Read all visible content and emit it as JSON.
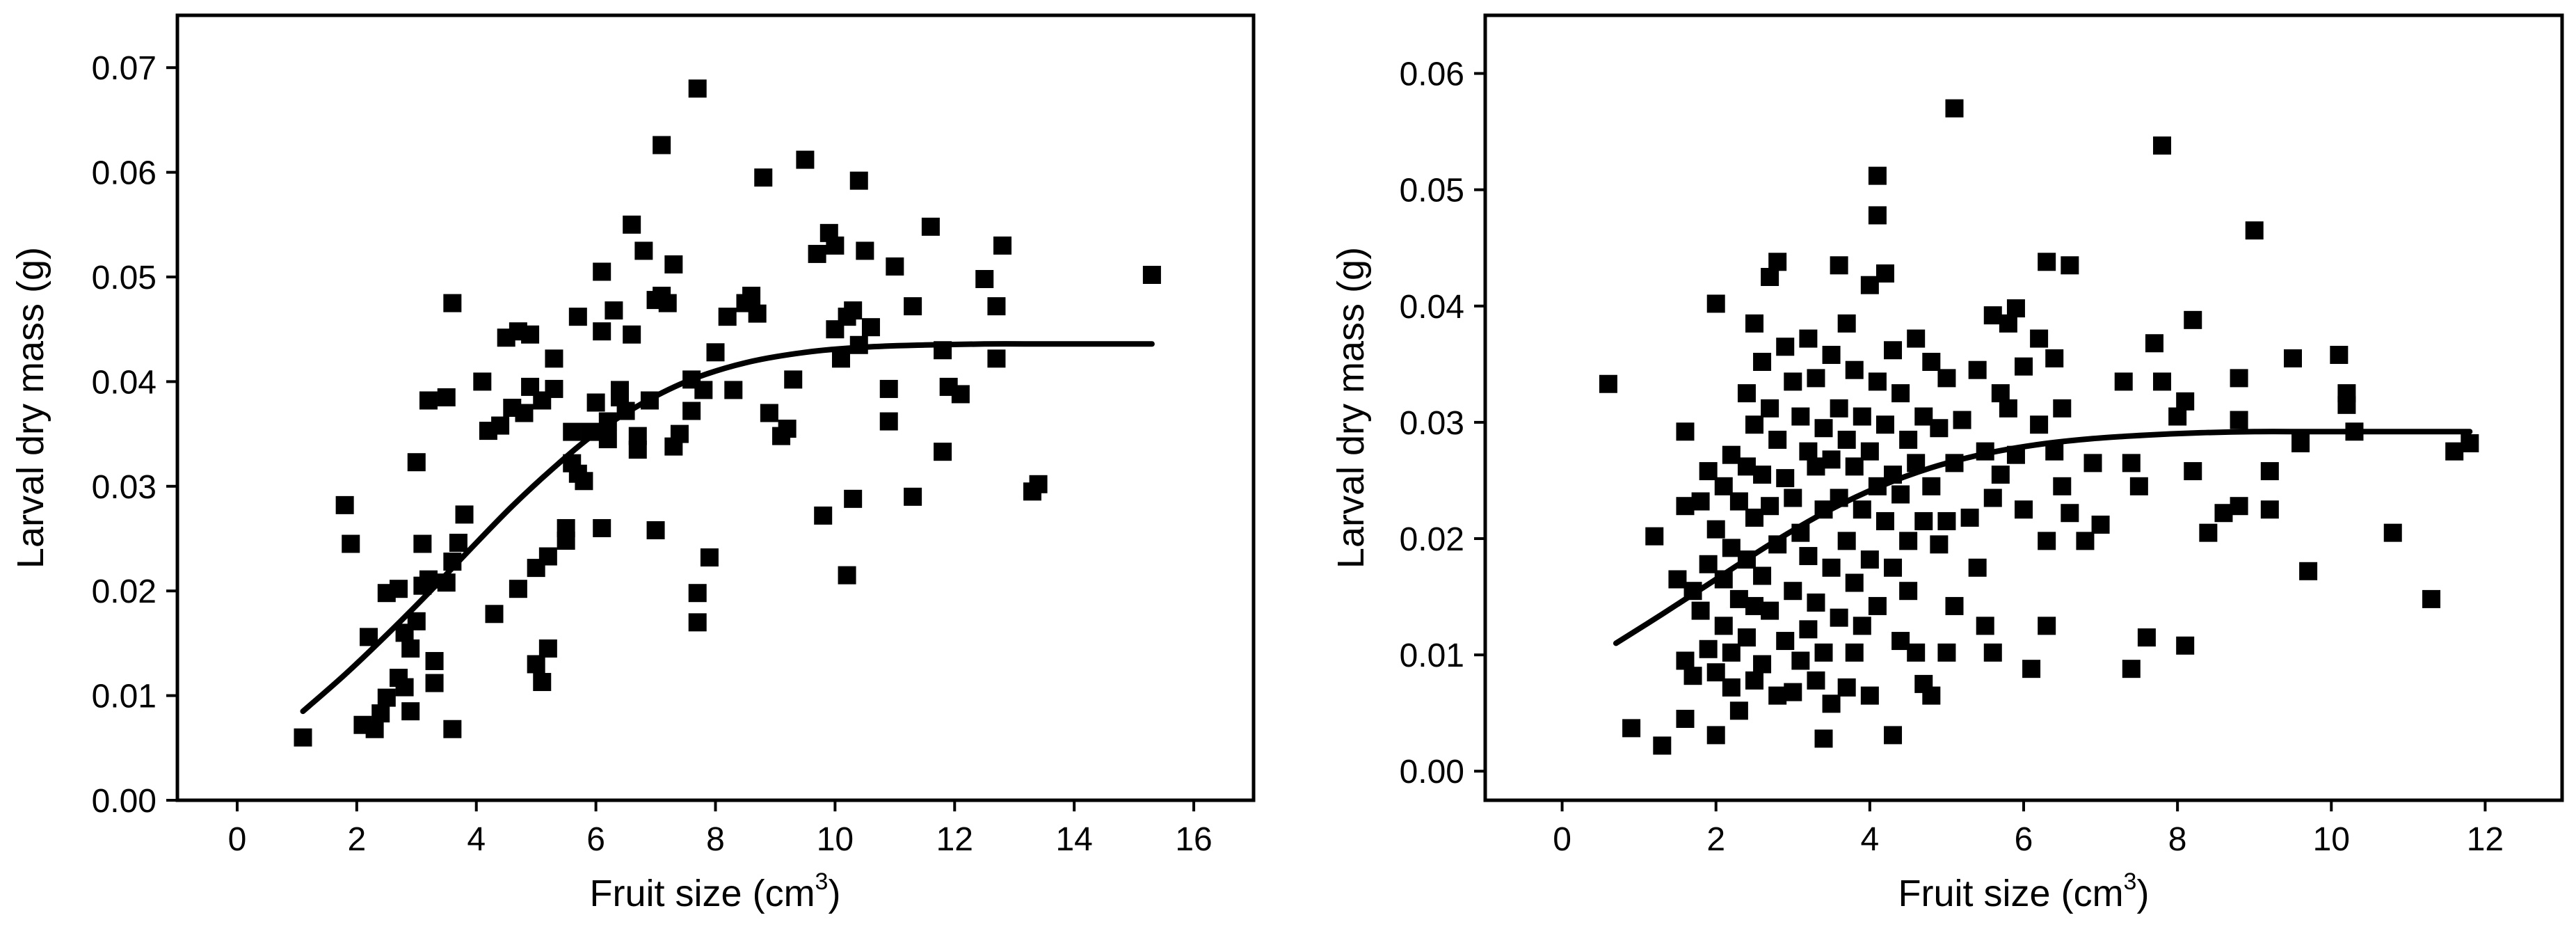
{
  "chart_data": [
    {
      "type": "scatter",
      "xlabel": "Fruit size (cm",
      "xlabel_sup": "3",
      "xlabel_close": ")",
      "ylabel": "Larval dry mass (g)",
      "xlim": [
        -1,
        17
      ],
      "ylim": [
        0,
        0.075
      ],
      "xticks": [
        "0",
        "2",
        "4",
        "6",
        "8",
        "10",
        "12",
        "14",
        "16"
      ],
      "yticks": [
        "0.00",
        "0.01",
        "0.02",
        "0.03",
        "0.04",
        "0.05",
        "0.06",
        "0.07"
      ],
      "fit_curve": {
        "x": [
          1.1,
          1.8,
          2.5,
          3.2,
          3.9,
          4.6,
          5.3,
          6.0,
          6.8,
          7.6,
          8.5,
          9.5,
          10.5,
          11.5,
          12.5,
          13.5,
          14.5,
          15.3
        ],
        "y": [
          0.0085,
          0.012,
          0.0158,
          0.0198,
          0.024,
          0.0281,
          0.0318,
          0.0351,
          0.038,
          0.0402,
          0.0418,
          0.0428,
          0.0433,
          0.0435,
          0.0436,
          0.0436,
          0.0436,
          0.0436
        ]
      },
      "points": [
        [
          1.1,
          0.006
        ],
        [
          1.8,
          0.0282
        ],
        [
          1.9,
          0.0245
        ],
        [
          2.1,
          0.0072
        ],
        [
          2.2,
          0.0156
        ],
        [
          2.3,
          0.0068
        ],
        [
          2.4,
          0.0083
        ],
        [
          2.5,
          0.0098
        ],
        [
          2.5,
          0.0198
        ],
        [
          2.7,
          0.0202
        ],
        [
          2.7,
          0.0117
        ],
        [
          2.8,
          0.0108
        ],
        [
          2.8,
          0.016
        ],
        [
          2.9,
          0.0145
        ],
        [
          2.9,
          0.0085
        ],
        [
          3.0,
          0.0323
        ],
        [
          3.0,
          0.0171
        ],
        [
          3.1,
          0.0245
        ],
        [
          3.1,
          0.0205
        ],
        [
          3.2,
          0.0382
        ],
        [
          3.2,
          0.0211
        ],
        [
          3.3,
          0.0133
        ],
        [
          3.3,
          0.0112
        ],
        [
          3.5,
          0.0385
        ],
        [
          3.5,
          0.0208
        ],
        [
          3.6,
          0.0475
        ],
        [
          3.6,
          0.0068
        ],
        [
          3.6,
          0.0228
        ],
        [
          3.7,
          0.0246
        ],
        [
          3.8,
          0.0273
        ],
        [
          4.1,
          0.04
        ],
        [
          4.2,
          0.0353
        ],
        [
          4.3,
          0.0178
        ],
        [
          4.4,
          0.0358
        ],
        [
          4.5,
          0.0442
        ],
        [
          4.6,
          0.0375
        ],
        [
          4.7,
          0.0448
        ],
        [
          4.7,
          0.0202
        ],
        [
          4.8,
          0.037
        ],
        [
          4.9,
          0.0445
        ],
        [
          4.9,
          0.0395
        ],
        [
          5.0,
          0.0222
        ],
        [
          5.0,
          0.013
        ],
        [
          5.1,
          0.0113
        ],
        [
          5.1,
          0.0382
        ],
        [
          5.2,
          0.0145
        ],
        [
          5.2,
          0.0233
        ],
        [
          5.3,
          0.0393
        ],
        [
          5.3,
          0.0422
        ],
        [
          5.5,
          0.0248
        ],
        [
          5.5,
          0.026
        ],
        [
          5.6,
          0.0352
        ],
        [
          5.6,
          0.0322
        ],
        [
          5.7,
          0.0462
        ],
        [
          5.7,
          0.0312
        ],
        [
          5.8,
          0.0305
        ],
        [
          5.9,
          0.0352
        ],
        [
          6.0,
          0.038
        ],
        [
          6.1,
          0.0505
        ],
        [
          6.1,
          0.0448
        ],
        [
          6.1,
          0.026
        ],
        [
          6.2,
          0.0362
        ],
        [
          6.2,
          0.0345
        ],
        [
          6.3,
          0.0468
        ],
        [
          6.4,
          0.0392
        ],
        [
          6.4,
          0.0385
        ],
        [
          6.5,
          0.0372
        ],
        [
          6.6,
          0.055
        ],
        [
          6.6,
          0.0445
        ],
        [
          6.7,
          0.0348
        ],
        [
          6.7,
          0.0335
        ],
        [
          6.8,
          0.0525
        ],
        [
          6.9,
          0.0382
        ],
        [
          7.0,
          0.0478
        ],
        [
          7.0,
          0.0258
        ],
        [
          7.1,
          0.0626
        ],
        [
          7.1,
          0.0482
        ],
        [
          7.2,
          0.0475
        ],
        [
          7.3,
          0.0512
        ],
        [
          7.3,
          0.0338
        ],
        [
          7.4,
          0.035
        ],
        [
          7.6,
          0.0402
        ],
        [
          7.6,
          0.0372
        ],
        [
          7.7,
          0.068
        ],
        [
          7.7,
          0.0198
        ],
        [
          7.7,
          0.017
        ],
        [
          7.8,
          0.0392
        ],
        [
          7.9,
          0.0232
        ],
        [
          8.0,
          0.0428
        ],
        [
          8.2,
          0.0462
        ],
        [
          8.3,
          0.0392
        ],
        [
          8.5,
          0.0475
        ],
        [
          8.6,
          0.0482
        ],
        [
          8.7,
          0.0465
        ],
        [
          8.8,
          0.0595
        ],
        [
          8.9,
          0.037
        ],
        [
          9.1,
          0.0348
        ],
        [
          9.2,
          0.0355
        ],
        [
          9.3,
          0.0402
        ],
        [
          9.5,
          0.0612
        ],
        [
          9.7,
          0.0522
        ],
        [
          9.8,
          0.0272
        ],
        [
          9.9,
          0.0542
        ],
        [
          10.0,
          0.053
        ],
        [
          10.0,
          0.045
        ],
        [
          10.1,
          0.0422
        ],
        [
          10.2,
          0.0462
        ],
        [
          10.2,
          0.0215
        ],
        [
          10.3,
          0.0468
        ],
        [
          10.3,
          0.0288
        ],
        [
          10.4,
          0.0592
        ],
        [
          10.4,
          0.0435
        ],
        [
          10.5,
          0.0525
        ],
        [
          10.6,
          0.0452
        ],
        [
          10.9,
          0.0393
        ],
        [
          10.9,
          0.0362
        ],
        [
          11.0,
          0.051
        ],
        [
          11.3,
          0.0472
        ],
        [
          11.3,
          0.029
        ],
        [
          11.6,
          0.0548
        ],
        [
          11.8,
          0.043
        ],
        [
          11.8,
          0.0333
        ],
        [
          11.9,
          0.0395
        ],
        [
          12.1,
          0.0388
        ],
        [
          12.5,
          0.0498
        ],
        [
          12.7,
          0.0422
        ],
        [
          12.7,
          0.0472
        ],
        [
          12.8,
          0.053
        ],
        [
          13.3,
          0.0295
        ],
        [
          13.4,
          0.0302
        ],
        [
          15.3,
          0.0502
        ]
      ]
    },
    {
      "type": "scatter",
      "xlabel": "Fruit size (cm",
      "xlabel_sup": "3",
      "xlabel_close": ")",
      "ylabel": "Larval dry mass (g)",
      "xlim": [
        -1,
        13
      ],
      "ylim": [
        -0.0025,
        0.065
      ],
      "xticks": [
        "0",
        "2",
        "4",
        "6",
        "8",
        "10",
        "12"
      ],
      "yticks": [
        "0.00",
        "0.01",
        "0.02",
        "0.03",
        "0.04",
        "0.05",
        "0.06"
      ],
      "fit_curve": {
        "x": [
          0.7,
          1.3,
          2.0,
          2.7,
          3.4,
          4.1,
          4.8,
          5.5,
          6.2,
          6.9,
          7.6,
          8.3,
          9.0,
          9.7,
          10.4,
          11.1,
          11.8
        ],
        "y": [
          0.011,
          0.0135,
          0.0165,
          0.0195,
          0.0222,
          0.0244,
          0.0261,
          0.0273,
          0.0281,
          0.0286,
          0.0289,
          0.0291,
          0.0292,
          0.0292,
          0.0292,
          0.0292,
          0.0292
        ]
      },
      "points": [
        [
          0.6,
          0.0333
        ],
        [
          0.9,
          0.0037
        ],
        [
          1.2,
          0.0202
        ],
        [
          1.3,
          0.0022
        ],
        [
          1.5,
          0.0165
        ],
        [
          1.6,
          0.0292
        ],
        [
          1.6,
          0.0045
        ],
        [
          1.6,
          0.0095
        ],
        [
          1.6,
          0.0228
        ],
        [
          1.7,
          0.0155
        ],
        [
          1.7,
          0.0082
        ],
        [
          1.8,
          0.0232
        ],
        [
          1.8,
          0.0138
        ],
        [
          1.9,
          0.0258
        ],
        [
          1.9,
          0.0178
        ],
        [
          1.9,
          0.0105
        ],
        [
          2.0,
          0.0402
        ],
        [
          2.0,
          0.0208
        ],
        [
          2.0,
          0.0085
        ],
        [
          2.0,
          0.0031
        ],
        [
          2.1,
          0.0245
        ],
        [
          2.1,
          0.0165
        ],
        [
          2.1,
          0.0125
        ],
        [
          2.2,
          0.0272
        ],
        [
          2.2,
          0.0192
        ],
        [
          2.2,
          0.0102
        ],
        [
          2.2,
          0.0072
        ],
        [
          2.3,
          0.0232
        ],
        [
          2.3,
          0.0148
        ],
        [
          2.3,
          0.0052
        ],
        [
          2.4,
          0.0325
        ],
        [
          2.4,
          0.0262
        ],
        [
          2.4,
          0.0182
        ],
        [
          2.4,
          0.0115
        ],
        [
          2.5,
          0.0385
        ],
        [
          2.5,
          0.0298
        ],
        [
          2.5,
          0.0218
        ],
        [
          2.5,
          0.0142
        ],
        [
          2.5,
          0.0078
        ],
        [
          2.6,
          0.0352
        ],
        [
          2.6,
          0.0255
        ],
        [
          2.6,
          0.0168
        ],
        [
          2.6,
          0.0092
        ],
        [
          2.7,
          0.0425
        ],
        [
          2.7,
          0.0312
        ],
        [
          2.7,
          0.0228
        ],
        [
          2.7,
          0.0138
        ],
        [
          2.8,
          0.0438
        ],
        [
          2.8,
          0.0285
        ],
        [
          2.8,
          0.0195
        ],
        [
          2.8,
          0.0065
        ],
        [
          2.9,
          0.0365
        ],
        [
          2.9,
          0.0252
        ],
        [
          2.9,
          0.0112
        ],
        [
          3.0,
          0.0335
        ],
        [
          3.0,
          0.0235
        ],
        [
          3.0,
          0.0155
        ],
        [
          3.0,
          0.0068
        ],
        [
          3.1,
          0.0305
        ],
        [
          3.1,
          0.0205
        ],
        [
          3.1,
          0.0095
        ],
        [
          3.2,
          0.0372
        ],
        [
          3.2,
          0.0275
        ],
        [
          3.2,
          0.0185
        ],
        [
          3.2,
          0.0122
        ],
        [
          3.3,
          0.0338
        ],
        [
          3.3,
          0.0262
        ],
        [
          3.3,
          0.0145
        ],
        [
          3.3,
          0.0078
        ],
        [
          3.4,
          0.0295
        ],
        [
          3.4,
          0.0225
        ],
        [
          3.4,
          0.0102
        ],
        [
          3.4,
          0.0028
        ],
        [
          3.5,
          0.0358
        ],
        [
          3.5,
          0.0268
        ],
        [
          3.5,
          0.0175
        ],
        [
          3.5,
          0.0058
        ],
        [
          3.6,
          0.0435
        ],
        [
          3.6,
          0.0312
        ],
        [
          3.6,
          0.0235
        ],
        [
          3.6,
          0.0132
        ],
        [
          3.7,
          0.0385
        ],
        [
          3.7,
          0.0285
        ],
        [
          3.7,
          0.0198
        ],
        [
          3.7,
          0.0072
        ],
        [
          3.8,
          0.0345
        ],
        [
          3.8,
          0.0262
        ],
        [
          3.8,
          0.0162
        ],
        [
          3.8,
          0.0102
        ],
        [
          3.9,
          0.0305
        ],
        [
          3.9,
          0.0225
        ],
        [
          3.9,
          0.0125
        ],
        [
          4.0,
          0.0418
        ],
        [
          4.0,
          0.0275
        ],
        [
          4.0,
          0.0182
        ],
        [
          4.0,
          0.0065
        ],
        [
          4.1,
          0.0512
        ],
        [
          4.1,
          0.0478
        ],
        [
          4.1,
          0.0335
        ],
        [
          4.1,
          0.0245
        ],
        [
          4.1,
          0.0142
        ],
        [
          4.2,
          0.0428
        ],
        [
          4.2,
          0.0298
        ],
        [
          4.2,
          0.0215
        ],
        [
          4.3,
          0.0362
        ],
        [
          4.3,
          0.0255
        ],
        [
          4.3,
          0.0175
        ],
        [
          4.3,
          0.0031
        ],
        [
          4.4,
          0.0325
        ],
        [
          4.4,
          0.0238
        ],
        [
          4.4,
          0.0112
        ],
        [
          4.5,
          0.0285
        ],
        [
          4.5,
          0.0198
        ],
        [
          4.5,
          0.0155
        ],
        [
          4.6,
          0.0372
        ],
        [
          4.6,
          0.0265
        ],
        [
          4.6,
          0.0102
        ],
        [
          4.7,
          0.0305
        ],
        [
          4.7,
          0.0215
        ],
        [
          4.7,
          0.0075
        ],
        [
          4.8,
          0.0352
        ],
        [
          4.8,
          0.0245
        ],
        [
          4.8,
          0.0065
        ],
        [
          4.9,
          0.0295
        ],
        [
          4.9,
          0.0195
        ],
        [
          5.0,
          0.0338
        ],
        [
          5.0,
          0.0215
        ],
        [
          5.0,
          0.0102
        ],
        [
          5.1,
          0.057
        ],
        [
          5.1,
          0.0265
        ],
        [
          5.1,
          0.0142
        ],
        [
          5.2,
          0.0302
        ],
        [
          5.3,
          0.0218
        ],
        [
          5.4,
          0.0345
        ],
        [
          5.4,
          0.0175
        ],
        [
          5.5,
          0.0275
        ],
        [
          5.5,
          0.0125
        ],
        [
          5.6,
          0.0392
        ],
        [
          5.6,
          0.0235
        ],
        [
          5.6,
          0.0102
        ],
        [
          5.7,
          0.0325
        ],
        [
          5.7,
          0.0255
        ],
        [
          5.8,
          0.0385
        ],
        [
          5.8,
          0.0312
        ],
        [
          5.9,
          0.0398
        ],
        [
          5.9,
          0.0272
        ],
        [
          6.0,
          0.0348
        ],
        [
          6.0,
          0.0225
        ],
        [
          6.1,
          0.0088
        ],
        [
          6.2,
          0.0372
        ],
        [
          6.2,
          0.0298
        ],
        [
          6.3,
          0.0438
        ],
        [
          6.3,
          0.0198
        ],
        [
          6.3,
          0.0125
        ],
        [
          6.4,
          0.0355
        ],
        [
          6.4,
          0.0275
        ],
        [
          6.5,
          0.0312
        ],
        [
          6.5,
          0.0245
        ],
        [
          6.6,
          0.0435
        ],
        [
          6.6,
          0.0222
        ],
        [
          6.8,
          0.0198
        ],
        [
          6.9,
          0.0265
        ],
        [
          7.0,
          0.0212
        ],
        [
          7.3,
          0.0335
        ],
        [
          7.4,
          0.0088
        ],
        [
          7.4,
          0.0265
        ],
        [
          7.5,
          0.0245
        ],
        [
          7.6,
          0.0115
        ],
        [
          7.7,
          0.0368
        ],
        [
          7.8,
          0.0538
        ],
        [
          7.8,
          0.0335
        ],
        [
          8.0,
          0.0305
        ],
        [
          8.1,
          0.0318
        ],
        [
          8.1,
          0.0108
        ],
        [
          8.2,
          0.0258
        ],
        [
          8.2,
          0.0388
        ],
        [
          8.4,
          0.0205
        ],
        [
          8.6,
          0.0222
        ],
        [
          8.8,
          0.0228
        ],
        [
          8.8,
          0.0338
        ],
        [
          8.8,
          0.0302
        ],
        [
          9.0,
          0.0465
        ],
        [
          9.2,
          0.0258
        ],
        [
          9.2,
          0.0225
        ],
        [
          9.5,
          0.0355
        ],
        [
          9.6,
          0.0282
        ],
        [
          9.7,
          0.0172
        ],
        [
          10.1,
          0.0358
        ],
        [
          10.2,
          0.0325
        ],
        [
          10.2,
          0.0315
        ],
        [
          10.3,
          0.0292
        ],
        [
          10.8,
          0.0205
        ],
        [
          11.3,
          0.0148
        ],
        [
          11.6,
          0.0275
        ],
        [
          11.8,
          0.0282
        ]
      ]
    }
  ]
}
